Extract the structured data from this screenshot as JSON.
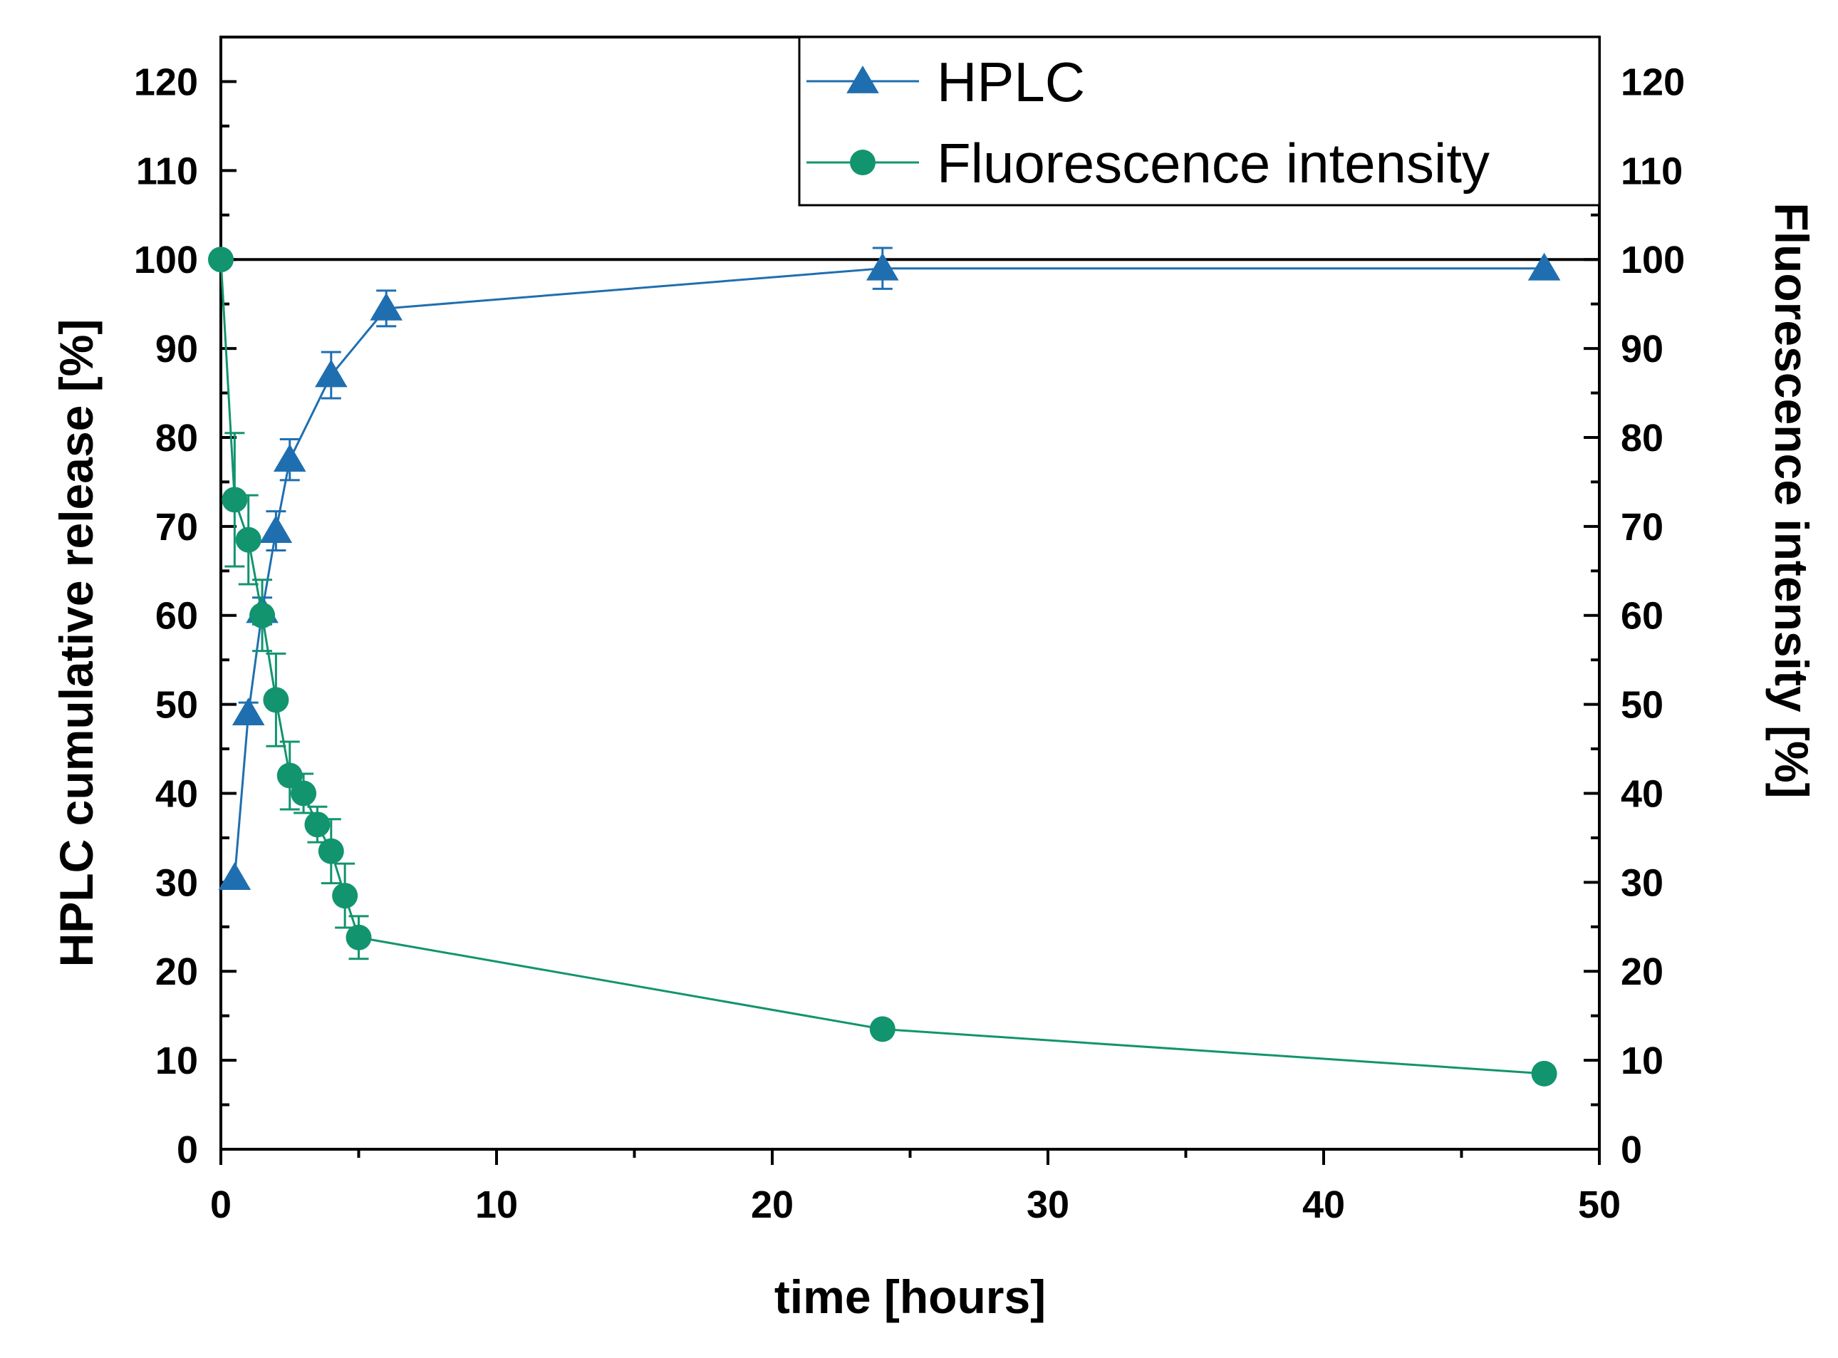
{
  "chart_data": {
    "type": "line",
    "title": "",
    "xlabel": "time [hours]",
    "ylabel_left": "HPLC cumulative release [%]",
    "ylabel_right": "Fluorescence intensity [%]",
    "xlim": [
      0,
      50
    ],
    "ylim": [
      0,
      125
    ],
    "x_ticks": [
      0,
      10,
      20,
      30,
      40,
      50
    ],
    "y_ticks": [
      0,
      10,
      20,
      30,
      40,
      50,
      60,
      70,
      80,
      90,
      100,
      110,
      120
    ],
    "reference_line_y": 100,
    "legend_position": "top-right",
    "series": [
      {
        "name": "HPLC",
        "color": "#1f6fb0",
        "marker": "triangle",
        "axis": "left",
        "points": [
          {
            "x": 0.5,
            "y": 30.5,
            "err": 0
          },
          {
            "x": 1,
            "y": 49,
            "err": 1.2
          },
          {
            "x": 1.5,
            "y": 60.5,
            "err": 1.5
          },
          {
            "x": 2,
            "y": 69.5,
            "err": 2.2
          },
          {
            "x": 2.5,
            "y": 77.5,
            "err": 2.3
          },
          {
            "x": 4,
            "y": 87,
            "err": 2.6
          },
          {
            "x": 6,
            "y": 94.5,
            "err": 2.0
          },
          {
            "x": 24,
            "y": 99,
            "err": 2.3
          },
          {
            "x": 48,
            "y": 99,
            "err": 0
          }
        ]
      },
      {
        "name": "Fluorescence intensity",
        "color": "#12946e",
        "marker": "circle",
        "axis": "right",
        "points": [
          {
            "x": 0,
            "y": 100,
            "err": 0
          },
          {
            "x": 0.5,
            "y": 73,
            "err": 7.5
          },
          {
            "x": 1,
            "y": 68.5,
            "err": 5.0
          },
          {
            "x": 1.5,
            "y": 60,
            "err": 4.0
          },
          {
            "x": 2,
            "y": 50.5,
            "err": 5.2
          },
          {
            "x": 2.5,
            "y": 42,
            "err": 3.8
          },
          {
            "x": 3,
            "y": 40,
            "err": 2.2
          },
          {
            "x": 3.5,
            "y": 36.5,
            "err": 2.0
          },
          {
            "x": 4,
            "y": 33.5,
            "err": 3.6
          },
          {
            "x": 4.5,
            "y": 28.5,
            "err": 3.6
          },
          {
            "x": 5,
            "y": 23.8,
            "err": 2.4
          },
          {
            "x": 24,
            "y": 13.5,
            "err": 0
          },
          {
            "x": 48,
            "y": 8.5,
            "err": 0
          }
        ]
      }
    ]
  }
}
